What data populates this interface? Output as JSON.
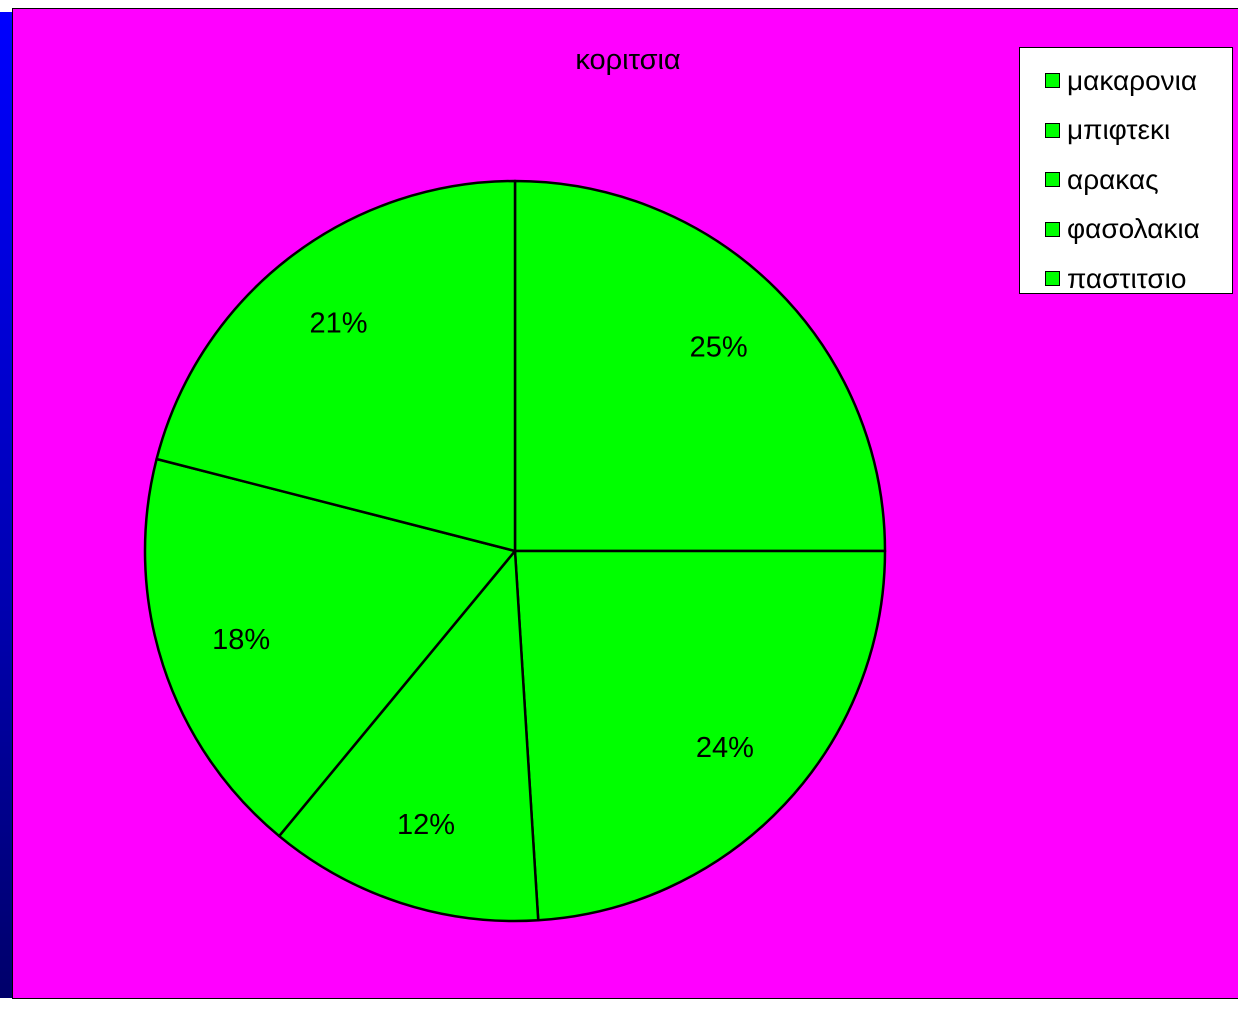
{
  "chart_data": {
    "type": "pie",
    "title": "κοριτσια",
    "categories": [
      "μακαρονια",
      "μπιφτεκι",
      "αρακας",
      "φασολακια",
      "παστιτσιο"
    ],
    "values": [
      25,
      24,
      12,
      18,
      21
    ],
    "value_labels": [
      "25%",
      "24%",
      "12%",
      "18%",
      "21%"
    ],
    "legend_position": "top-right",
    "colors": {
      "slice": "#00ff00",
      "background": "#ff00ff",
      "outline": "#000000"
    }
  }
}
